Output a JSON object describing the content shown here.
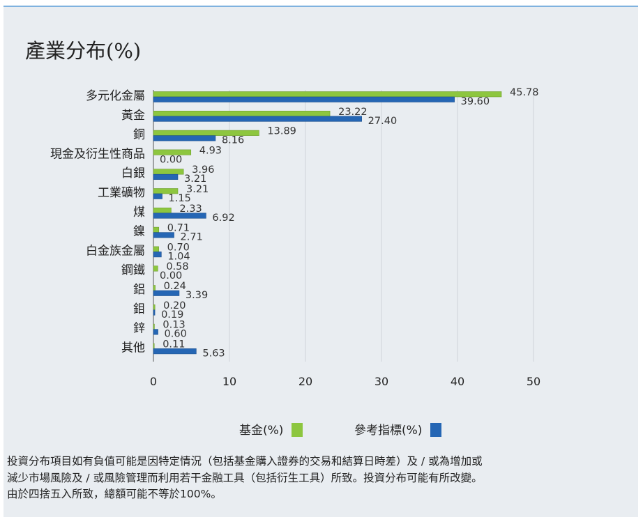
{
  "title": "產業分布(%)",
  "chart_data": {
    "type": "bar",
    "orientation": "horizontal",
    "categories": [
      "多元化金屬",
      "黃金",
      "銅",
      "現金及衍生性商品",
      "白銀",
      "工業礦物",
      "煤",
      "鎳",
      "白金族金屬",
      "鋼鐵",
      "鋁",
      "鉬",
      "鋅",
      "其他"
    ],
    "series": [
      {
        "name": "基金(%)",
        "color": "#8dc63f",
        "values": [
          45.78,
          23.22,
          13.89,
          4.93,
          3.96,
          3.21,
          2.33,
          0.71,
          0.7,
          0.58,
          0.24,
          0.2,
          0.13,
          0.11
        ]
      },
      {
        "name": "參考指標(%)",
        "color": "#2566b4",
        "values": [
          39.6,
          27.4,
          8.16,
          0.0,
          3.21,
          1.15,
          6.92,
          2.71,
          1.04,
          0.0,
          3.39,
          0.19,
          0.6,
          5.63
        ]
      }
    ],
    "xlim": [
      0,
      50
    ],
    "xticks": [
      0,
      10,
      20,
      30,
      40,
      50
    ],
    "legend_position": "bottom",
    "grid": true
  },
  "footnote": [
    "投資分布項目如有負值可能是因特定情況（包括基金購入證券的交易和結算日時差）及 / 或為增加或",
    "減少市場風險及 / 或風險管理而利用若干金融工具（包括衍生工具）所致。投資分布可能有所改變。",
    "由於四捨五入所致，總額可能不等於100%。"
  ]
}
